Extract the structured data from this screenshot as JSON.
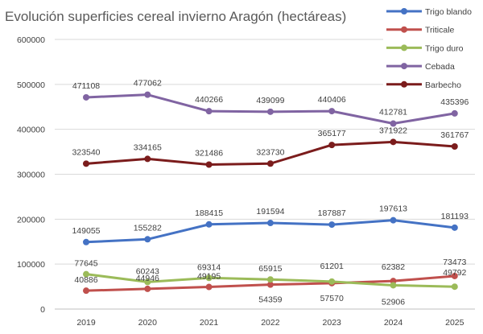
{
  "chart_data": {
    "type": "line",
    "title": "Evolución superficies cereal invierno Aragón (hectáreas)",
    "categories": [
      "2019",
      "2020",
      "2021",
      "2022",
      "2023",
      "2024",
      "2025"
    ],
    "ylim": [
      0,
      600000
    ],
    "yticks": [
      0,
      100000,
      200000,
      300000,
      400000,
      500000,
      600000
    ],
    "ytick_labels": [
      "0",
      "100000",
      "200000",
      "300000",
      "400000",
      "500000",
      "600000"
    ],
    "grid": true,
    "legend_position": "top-right",
    "series": [
      {
        "name": "Trigo blando",
        "color": "#4472c4",
        "values": [
          149055,
          155282,
          188415,
          191594,
          187887,
          197613,
          181193
        ],
        "labels": [
          "149055",
          "155282",
          "188415",
          "191594",
          "187887",
          "197613",
          "181193"
        ]
      },
      {
        "name": "Triticale",
        "color": "#c0504d",
        "values": [
          40886,
          44946,
          49195,
          54359,
          57570,
          62382,
          73473
        ],
        "labels": [
          "40886",
          "44946",
          "49195",
          "54359",
          "57570",
          "62382",
          "73473"
        ]
      },
      {
        "name": "Trigo duro",
        "color": "#9bbb59",
        "values": [
          77645,
          60243,
          69314,
          65915,
          61201,
          52906,
          49792
        ],
        "labels": [
          "77645",
          "60243",
          "69314",
          "65915",
          "61201",
          "52906",
          "49792"
        ]
      },
      {
        "name": "Cebada",
        "color": "#8064a2",
        "values": [
          471108,
          477062,
          440266,
          439099,
          440406,
          412781,
          435396
        ],
        "labels": [
          "471108",
          "477062",
          "440266",
          "439099",
          "440406",
          "412781",
          "435396"
        ]
      },
      {
        "name": "Barbecho",
        "color": "#7b1c1c",
        "values": [
          323540,
          334165,
          321486,
          323730,
          365177,
          371922,
          361767
        ],
        "labels": [
          "323540",
          "334165",
          "321486",
          "323730",
          "365177",
          "371922",
          "361767"
        ]
      }
    ]
  }
}
